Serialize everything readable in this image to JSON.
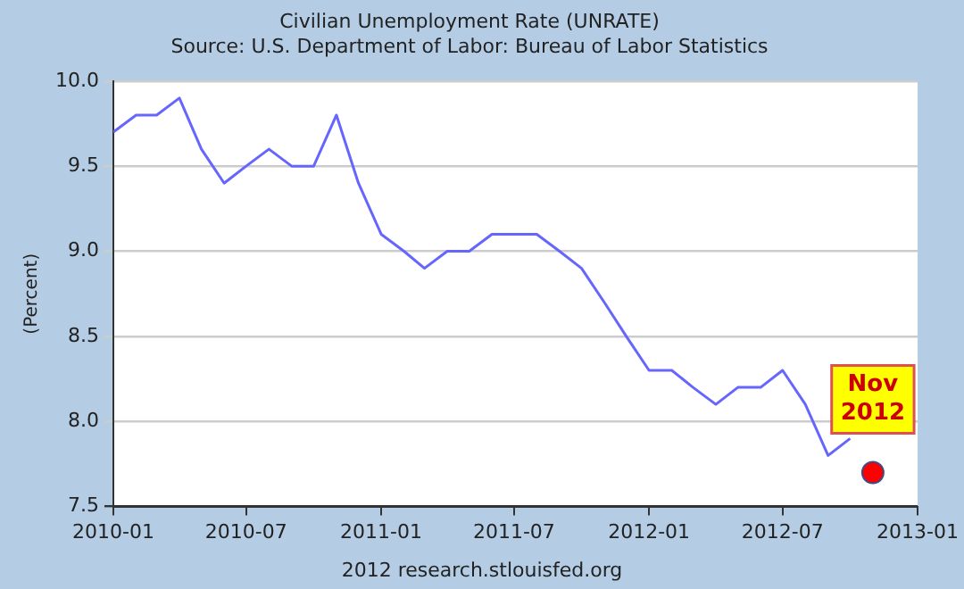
{
  "chart_data": {
    "type": "line",
    "title": "Civilian Unemployment Rate (UNRATE)",
    "subtitle": "Source: U.S. Department of Labor: Bureau of Labor Statistics",
    "ylabel": "(Percent)",
    "x": [
      "2010-01",
      "2010-02",
      "2010-03",
      "2010-04",
      "2010-05",
      "2010-06",
      "2010-07",
      "2010-08",
      "2010-09",
      "2010-10",
      "2010-11",
      "2010-12",
      "2011-01",
      "2011-02",
      "2011-03",
      "2011-04",
      "2011-05",
      "2011-06",
      "2011-07",
      "2011-08",
      "2011-09",
      "2011-10",
      "2011-11",
      "2011-12",
      "2012-01",
      "2012-02",
      "2012-03",
      "2012-04",
      "2012-05",
      "2012-06",
      "2012-07",
      "2012-08",
      "2012-09",
      "2012-10"
    ],
    "series": [
      {
        "color": "#6666ff",
        "marker": "none",
        "values": [
          9.7,
          9.8,
          9.8,
          9.9,
          9.6,
          9.4,
          9.5,
          9.6,
          9.5,
          9.5,
          9.8,
          9.4,
          9.1,
          9.0,
          8.9,
          9.0,
          9.0,
          9.1,
          9.1,
          9.1,
          9.0,
          8.9,
          8.7,
          8.5,
          8.3,
          8.3,
          8.2,
          8.1,
          8.2,
          8.2,
          8.3,
          8.1,
          7.8,
          7.9
        ]
      },
      {
        "type": "scatter",
        "marker": "circle",
        "color": "#ff0000",
        "x": [
          "2012-11"
        ],
        "values": [
          7.7
        ]
      }
    ],
    "xlim": [
      "2010-01",
      "2013-01"
    ],
    "xticks": [
      "2010-01",
      "2010-07",
      "2011-01",
      "2011-07",
      "2012-01",
      "2012-07",
      "2013-01"
    ],
    "ylim": [
      7.5,
      10.0
    ],
    "yticks": [
      {
        "value": 7.5,
        "label": "7.5"
      },
      {
        "value": 8.0,
        "label": "8.0"
      },
      {
        "value": 8.5,
        "label": "8.5"
      },
      {
        "value": 9.0,
        "label": "9.0"
      },
      {
        "value": 9.5,
        "label": "9.5"
      },
      {
        "value": 10.0,
        "label": "10.0"
      }
    ],
    "grid": "y",
    "legend": false,
    "line_style": "solid",
    "annotations": [
      {
        "text": "Nov 2012",
        "x": "2012-11",
        "y": 7.7
      },
      "2012 research.stlouisfed.org"
    ]
  }
}
